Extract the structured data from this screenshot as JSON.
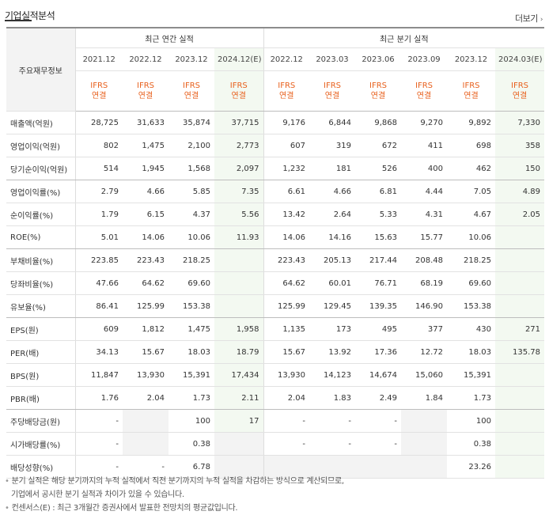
{
  "title": "기업실적분석",
  "more_label": "더보기",
  "header": {
    "row_label": "주요재무정보",
    "annual_group": "최근 연간 실적",
    "quarter_group": "최근 분기 실적",
    "annual_periods": [
      "2021.12",
      "2022.12",
      "2023.12",
      "2024.12(E)"
    ],
    "quarter_periods": [
      "2022.12",
      "2023.03",
      "2023.06",
      "2023.09",
      "2023.12",
      "2024.03(E)"
    ],
    "ifrs_line1": "IFRS",
    "ifrs_line2": "연결"
  },
  "rows": [
    {
      "label": "매출액(억원)",
      "values": [
        "28,725",
        "31,633",
        "35,874",
        "37,715",
        "9,176",
        "6,844",
        "9,868",
        "9,270",
        "9,892",
        "7,330"
      ]
    },
    {
      "label": "영업이익(억원)",
      "values": [
        "802",
        "1,475",
        "2,100",
        "2,773",
        "607",
        "319",
        "672",
        "411",
        "698",
        "358"
      ]
    },
    {
      "label": "당기순이익(억원)",
      "values": [
        "514",
        "1,945",
        "1,568",
        "2,097",
        "1,232",
        "181",
        "526",
        "400",
        "462",
        "150"
      ]
    },
    {
      "label": "영업이익률(%)",
      "values": [
        "2.79",
        "4.66",
        "5.85",
        "7.35",
        "6.61",
        "4.66",
        "6.81",
        "4.44",
        "7.05",
        "4.89"
      ]
    },
    {
      "label": "순이익률(%)",
      "values": [
        "1.79",
        "6.15",
        "4.37",
        "5.56",
        "13.42",
        "2.64",
        "5.33",
        "4.31",
        "4.67",
        "2.05"
      ]
    },
    {
      "label": "ROE(%)",
      "values": [
        "5.01",
        "14.06",
        "10.06",
        "11.93",
        "14.06",
        "14.16",
        "15.63",
        "15.77",
        "10.06",
        ""
      ]
    },
    {
      "label": "부채비율(%)",
      "values": [
        "223.85",
        "223.43",
        "218.25",
        "",
        "223.43",
        "205.13",
        "217.44",
        "208.48",
        "218.25",
        ""
      ]
    },
    {
      "label": "당좌비율(%)",
      "values": [
        "47.66",
        "64.62",
        "69.60",
        "",
        "64.62",
        "60.01",
        "76.71",
        "68.19",
        "69.60",
        ""
      ]
    },
    {
      "label": "유보율(%)",
      "values": [
        "86.41",
        "125.99",
        "153.38",
        "",
        "125.99",
        "129.45",
        "139.35",
        "146.90",
        "153.38",
        ""
      ]
    },
    {
      "label": "EPS(원)",
      "values": [
        "609",
        "1,812",
        "1,475",
        "1,958",
        "1,135",
        "173",
        "495",
        "377",
        "430",
        "271"
      ]
    },
    {
      "label": "PER(배)",
      "values": [
        "34.13",
        "15.67",
        "18.03",
        "18.79",
        "15.67",
        "13.92",
        "17.36",
        "12.72",
        "18.03",
        "135.78"
      ]
    },
    {
      "label": "BPS(원)",
      "values": [
        "11,847",
        "13,930",
        "15,391",
        "17,434",
        "13,930",
        "14,123",
        "14,674",
        "15,060",
        "15,391",
        ""
      ]
    },
    {
      "label": "PBR(배)",
      "values": [
        "1.76",
        "2.04",
        "1.73",
        "2.11",
        "2.04",
        "1.83",
        "2.49",
        "1.84",
        "1.73",
        ""
      ]
    },
    {
      "label": "주당배당금(원)",
      "values": [
        "-",
        "",
        "100",
        "17",
        "-",
        "-",
        "-",
        "",
        "100",
        ""
      ]
    },
    {
      "label": "시가배당률(%)",
      "values": [
        "-",
        "",
        "0.38",
        "",
        "-",
        "-",
        "-",
        "",
        "0.38",
        ""
      ]
    },
    {
      "label": "배당성향(%)",
      "values": [
        "-",
        "-",
        "6.78",
        "",
        "",
        "",
        "",
        "",
        "23.26",
        ""
      ]
    }
  ],
  "notes": [
    "분기 실적은 해당 분기까지의 누적 실적에서 직전 분기까지의 누적 실적을 차감하는 방식으로 계산되므로,",
    "기업에서 공시한 분기 실적과 차이가 있을 수 있습니다.",
    "컨센서스(E) : 최근 3개월간 증권사에서 발표한 전망치의 평균값입니다."
  ]
}
